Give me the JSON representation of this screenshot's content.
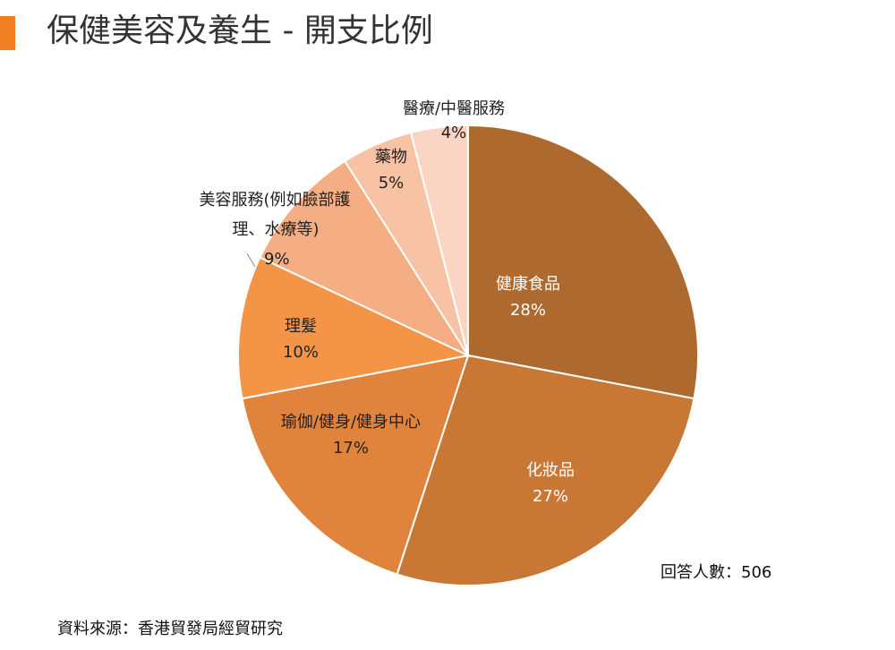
{
  "header": {
    "title": "保健美容及養生 - 開支比例",
    "accent_color": "#F07F23"
  },
  "chart_data": {
    "type": "pie",
    "title": "保健美容及養生 - 開支比例",
    "slices": [
      {
        "label_lines": [
          "健康食品"
        ],
        "value": 28,
        "value_label": "28%",
        "color": "#AE6A2E",
        "text_color": "#ffffff"
      },
      {
        "label_lines": [
          "化妝品"
        ],
        "value": 27,
        "value_label": "27%",
        "color": "#C87834",
        "text_color": "#ffffff"
      },
      {
        "label_lines": [
          "瑜伽/健身/健身中心"
        ],
        "value": 17,
        "value_label": "17%",
        "color": "#E0843D",
        "text_color": "#222222"
      },
      {
        "label_lines": [
          "理髮"
        ],
        "value": 10,
        "value_label": "10%",
        "color": "#F49447",
        "text_color": "#222222"
      },
      {
        "label_lines": [
          "美容服務(例如臉部護",
          "理、水療等)"
        ],
        "value": 9,
        "value_label": "9%",
        "color": "#F5AE84",
        "text_color": "#222222"
      },
      {
        "label_lines": [
          "藥物"
        ],
        "value": 5,
        "value_label": "5%",
        "color": "#F8C3A5",
        "text_color": "#222222"
      },
      {
        "label_lines": [
          "醫療/中醫服務"
        ],
        "value": 4,
        "value_label": "4%",
        "color": "#FAD5C3",
        "text_color": "#222222"
      }
    ]
  },
  "footer": {
    "respondents": "回答人數：506",
    "source": "資料來源：香港貿發局經貿研究"
  }
}
